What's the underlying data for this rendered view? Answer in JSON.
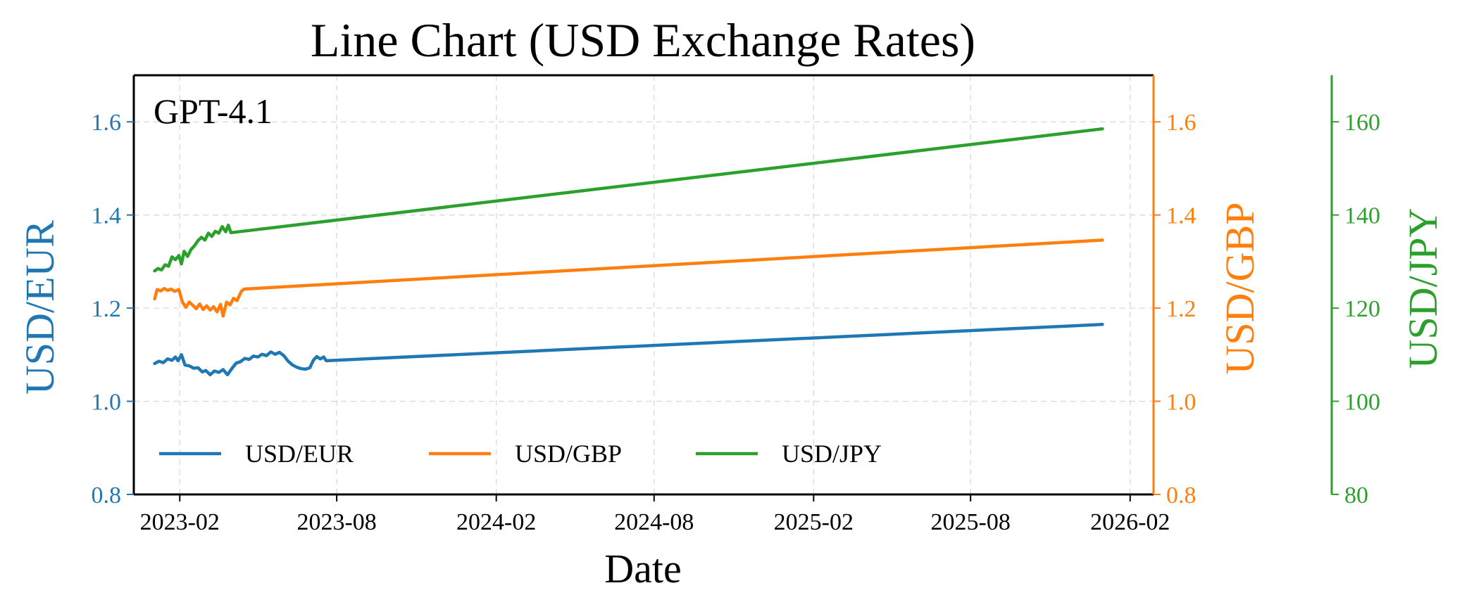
{
  "chart_data": {
    "type": "line",
    "title": "Line Chart (USD Exchange Rates)",
    "xlabel": "Date",
    "annotation": "GPT-4.1",
    "grid": true,
    "legend_placement": "lower-left",
    "xlim": [
      "2022-12-10",
      "2026-02-28"
    ],
    "x_ticks": [
      "2023-02",
      "2023-08",
      "2024-02",
      "2024-08",
      "2025-02",
      "2025-08",
      "2026-02"
    ],
    "axes": [
      {
        "id": "eur",
        "label": "USD/EUR",
        "side": "left",
        "color": "#1f77b4",
        "ylim": [
          0.8,
          1.7
        ],
        "ticks": [
          "0.8",
          "1.0",
          "1.2",
          "1.4",
          "1.6"
        ]
      },
      {
        "id": "gbp",
        "label": "USD/GBP",
        "side": "right",
        "color": "#ff7f0e",
        "ylim": [
          0.8,
          1.7
        ],
        "ticks": [
          "0.8",
          "1.0",
          "1.2",
          "1.4",
          "1.6"
        ]
      },
      {
        "id": "jpy",
        "label": "USD/JPY",
        "side": "right-outer",
        "color": "#2ca02c",
        "ylim": [
          80,
          170
        ],
        "ticks": [
          "80",
          "100",
          "120",
          "140",
          "160"
        ]
      }
    ],
    "series": [
      {
        "name": "USD/EUR",
        "axis": "eur",
        "color": "#1f77b4",
        "points": [
          [
            "2023-01-03",
            1.081
          ],
          [
            "2023-01-08",
            1.086
          ],
          [
            "2023-01-13",
            1.083
          ],
          [
            "2023-01-18",
            1.091
          ],
          [
            "2023-01-23",
            1.088
          ],
          [
            "2023-01-27",
            1.095
          ],
          [
            "2023-01-30",
            1.087
          ],
          [
            "2023-02-03",
            1.1
          ],
          [
            "2023-02-07",
            1.078
          ],
          [
            "2023-02-12",
            1.076
          ],
          [
            "2023-02-17",
            1.071
          ],
          [
            "2023-02-22",
            1.072
          ],
          [
            "2023-02-27",
            1.063
          ],
          [
            "2023-03-03",
            1.066
          ],
          [
            "2023-03-08",
            1.057
          ],
          [
            "2023-03-13",
            1.065
          ],
          [
            "2023-03-18",
            1.062
          ],
          [
            "2023-03-23",
            1.068
          ],
          [
            "2023-03-28",
            1.057
          ],
          [
            "2023-04-02",
            1.07
          ],
          [
            "2023-04-07",
            1.082
          ],
          [
            "2023-04-12",
            1.085
          ],
          [
            "2023-04-17",
            1.092
          ],
          [
            "2023-04-22",
            1.09
          ],
          [
            "2023-04-27",
            1.097
          ],
          [
            "2023-05-02",
            1.095
          ],
          [
            "2023-05-07",
            1.101
          ],
          [
            "2023-05-12",
            1.098
          ],
          [
            "2023-05-17",
            1.106
          ],
          [
            "2023-05-22",
            1.101
          ],
          [
            "2023-05-27",
            1.105
          ],
          [
            "2023-06-01",
            1.098
          ],
          [
            "2023-06-06",
            1.086
          ],
          [
            "2023-06-11",
            1.078
          ],
          [
            "2023-06-16",
            1.073
          ],
          [
            "2023-06-21",
            1.07
          ],
          [
            "2023-06-26",
            1.069
          ],
          [
            "2023-07-01",
            1.072
          ],
          [
            "2023-07-05",
            1.088
          ],
          [
            "2023-07-09",
            1.096
          ],
          [
            "2023-07-13",
            1.091
          ],
          [
            "2023-07-17",
            1.095
          ],
          [
            "2023-07-20",
            1.087
          ],
          [
            "2025-12-31",
            1.165
          ]
        ]
      },
      {
        "name": "USD/GBP",
        "axis": "gbp",
        "color": "#ff7f0e",
        "points": [
          [
            "2023-01-03",
            1.22
          ],
          [
            "2023-01-06",
            1.24
          ],
          [
            "2023-01-10",
            1.237
          ],
          [
            "2023-01-14",
            1.242
          ],
          [
            "2023-01-18",
            1.238
          ],
          [
            "2023-01-22",
            1.241
          ],
          [
            "2023-01-26",
            1.236
          ],
          [
            "2023-01-31",
            1.24
          ],
          [
            "2023-02-04",
            1.213
          ],
          [
            "2023-02-08",
            1.202
          ],
          [
            "2023-02-12",
            1.213
          ],
          [
            "2023-02-16",
            1.206
          ],
          [
            "2023-02-20",
            1.199
          ],
          [
            "2023-02-24",
            1.209
          ],
          [
            "2023-02-28",
            1.197
          ],
          [
            "2023-03-04",
            1.205
          ],
          [
            "2023-03-08",
            1.196
          ],
          [
            "2023-03-12",
            1.203
          ],
          [
            "2023-03-16",
            1.192
          ],
          [
            "2023-03-20",
            1.208
          ],
          [
            "2023-03-23",
            1.183
          ],
          [
            "2023-03-27",
            1.213
          ],
          [
            "2023-03-31",
            1.207
          ],
          [
            "2023-04-04",
            1.221
          ],
          [
            "2023-04-08",
            1.216
          ],
          [
            "2023-04-13",
            1.236
          ],
          [
            "2023-04-16",
            1.241
          ],
          [
            "2025-12-31",
            1.346
          ]
        ]
      },
      {
        "name": "USD/JPY",
        "axis": "jpy",
        "color": "#2ca02c",
        "points": [
          [
            "2023-01-03",
            128.0
          ],
          [
            "2023-01-07",
            128.5
          ],
          [
            "2023-01-11",
            128.2
          ],
          [
            "2023-01-15",
            129.3
          ],
          [
            "2023-01-19",
            129.0
          ],
          [
            "2023-01-23",
            131.0
          ],
          [
            "2023-01-27",
            130.4
          ],
          [
            "2023-01-31",
            131.3
          ],
          [
            "2023-02-03",
            129.5
          ],
          [
            "2023-02-06",
            132.2
          ],
          [
            "2023-02-10",
            131.1
          ],
          [
            "2023-02-14",
            132.6
          ],
          [
            "2023-02-18",
            133.4
          ],
          [
            "2023-02-22",
            134.5
          ],
          [
            "2023-02-26",
            135.2
          ],
          [
            "2023-03-02",
            134.6
          ],
          [
            "2023-03-06",
            136.1
          ],
          [
            "2023-03-10",
            135.4
          ],
          [
            "2023-03-14",
            136.5
          ],
          [
            "2023-03-18",
            136.1
          ],
          [
            "2023-03-22",
            137.5
          ],
          [
            "2023-03-26",
            136.4
          ],
          [
            "2023-03-29",
            137.8
          ],
          [
            "2023-04-01",
            136.2
          ],
          [
            "2025-12-31",
            158.5
          ]
        ]
      }
    ]
  }
}
